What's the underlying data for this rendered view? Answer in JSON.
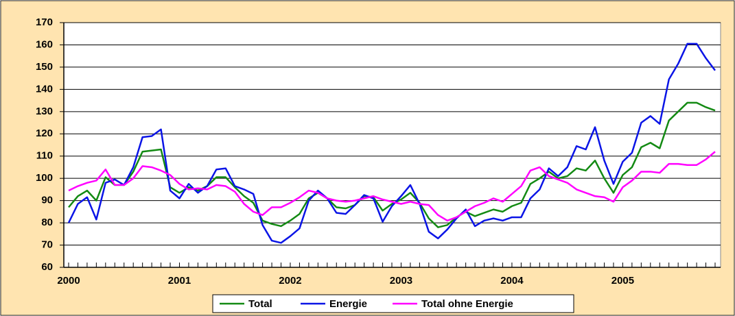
{
  "chart_data": {
    "type": "line",
    "categories": [
      "2000",
      null,
      null,
      null,
      null,
      null,
      null,
      null,
      null,
      null,
      null,
      null,
      "2001",
      null,
      null,
      null,
      null,
      null,
      null,
      null,
      null,
      null,
      null,
      null,
      "2002",
      null,
      null,
      null,
      null,
      null,
      null,
      null,
      null,
      null,
      null,
      null,
      "2003",
      null,
      null,
      null,
      null,
      null,
      null,
      null,
      null,
      null,
      null,
      null,
      "2004",
      null,
      null,
      null,
      null,
      null,
      null,
      null,
      null,
      null,
      null,
      null,
      "2005",
      null,
      null,
      null,
      null,
      null,
      null,
      null,
      null,
      null,
      null
    ],
    "series": [
      {
        "name": "Total",
        "color": "#138a13",
        "values": [
          87,
          92,
          94.5,
          90,
          100.5,
          97,
          97,
          103,
          112,
          112.5,
          113,
          96,
          93.5,
          96,
          94.5,
          96.5,
          100.5,
          100.5,
          96,
          92,
          89,
          81,
          79.5,
          78.5,
          81,
          84,
          91,
          93.5,
          91,
          87,
          86.5,
          88,
          92,
          91.5,
          85.5,
          88.5,
          90.5,
          93.5,
          89,
          82,
          78,
          79,
          82.5,
          85,
          83,
          84.5,
          86,
          85,
          87.5,
          89,
          97.5,
          100,
          103,
          100,
          101,
          104.5,
          103.5,
          108,
          100,
          93.5,
          101.5,
          105,
          114,
          116,
          113.5,
          126,
          130,
          134,
          134,
          132,
          130.5
        ]
      },
      {
        "name": "Energie",
        "color": "#0a14e6",
        "values": [
          80,
          88.5,
          91.5,
          81.5,
          98,
          99.5,
          97,
          105,
          118.5,
          119,
          122,
          94.5,
          91,
          97.5,
          93.5,
          96.5,
          104,
          104.5,
          96.5,
          95,
          93,
          79,
          72,
          71,
          74,
          77.5,
          90,
          94.5,
          91,
          84.5,
          84,
          88,
          92.5,
          91,
          80.5,
          87.5,
          92,
          97,
          88.5,
          76,
          73,
          77,
          82,
          86,
          78.5,
          81,
          82,
          81,
          82.5,
          82.5,
          91,
          95,
          104.5,
          101,
          105,
          114.5,
          113,
          123,
          108,
          97.5,
          107.5,
          111.5,
          125,
          128,
          124.5,
          144.5,
          151.5,
          160.5,
          160.5,
          154,
          148.5
        ]
      },
      {
        "name": "Total ohne Energie",
        "color": "#ff00ff",
        "values": [
          94.5,
          96.5,
          98,
          99,
          104,
          97,
          97,
          100,
          105.5,
          105,
          103.5,
          101.5,
          97.5,
          95,
          95.5,
          95,
          97,
          96.5,
          94,
          88.5,
          85,
          83.5,
          87,
          87,
          89,
          91.5,
          94.5,
          93.5,
          91,
          90,
          89.5,
          90,
          91,
          92,
          90.5,
          89.5,
          88.5,
          89.5,
          88.5,
          88,
          83.5,
          81,
          82.5,
          85,
          87.5,
          89,
          91,
          89.5,
          93,
          96.5,
          103.5,
          105,
          101,
          99.5,
          98,
          95,
          93.5,
          92,
          91.5,
          89.5,
          96,
          99,
          103,
          103,
          102.5,
          106.5,
          106.5,
          106,
          106,
          108.5,
          112
        ]
      }
    ],
    "ylim": [
      60,
      170
    ],
    "yticks": [
      60,
      70,
      80,
      90,
      100,
      110,
      120,
      130,
      140,
      150,
      160,
      170
    ],
    "grid": true,
    "legend": "bottom"
  }
}
